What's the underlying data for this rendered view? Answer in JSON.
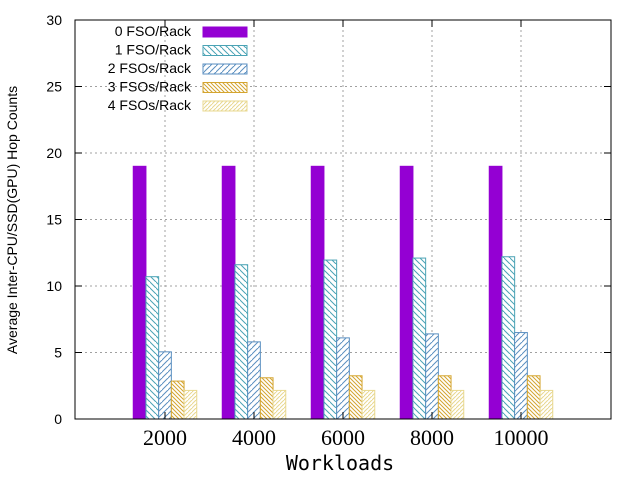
{
  "chart_data": {
    "type": "bar",
    "title": "",
    "xlabel": "Workloads",
    "ylabel": "Average Inter-CPU/SSD(GPU) Hop Counts",
    "categories": [
      "2000",
      "4000",
      "6000",
      "8000",
      "10000"
    ],
    "ylim": [
      0,
      30
    ],
    "yticks": [
      0,
      5,
      10,
      15,
      20,
      25,
      30
    ],
    "grid": true,
    "legend_position": "top-left",
    "series": [
      {
        "name": "0 FSO/Rack",
        "values": [
          19.0,
          19.0,
          19.0,
          19.0,
          19.0
        ],
        "color": "#9400d3",
        "fill": "solid"
      },
      {
        "name": "1 FSO/Rack",
        "values": [
          10.7,
          11.6,
          11.95,
          12.1,
          12.2
        ],
        "color": "#4aa3b5",
        "fill": "hatch-down"
      },
      {
        "name": "2 FSOs/Rack",
        "values": [
          5.05,
          5.8,
          6.1,
          6.4,
          6.5
        ],
        "color": "#5b8fc0",
        "fill": "hatch-up"
      },
      {
        "name": "3 FSOs/Rack",
        "values": [
          2.85,
          3.1,
          3.25,
          3.25,
          3.25
        ],
        "color": "#d4a530",
        "fill": "hatch-down-dense"
      },
      {
        "name": "4 FSOs/Rack",
        "values": [
          2.15,
          2.15,
          2.15,
          2.15,
          2.15
        ],
        "color": "#e8d890",
        "fill": "hatch-up-dense"
      }
    ]
  }
}
